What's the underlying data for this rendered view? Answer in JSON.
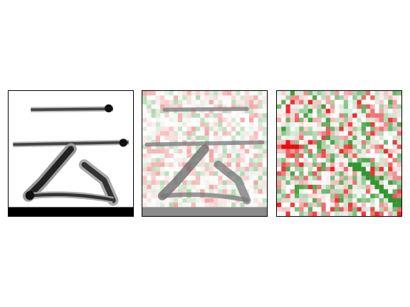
{
  "figure": {
    "panels": [
      {
        "id": "original",
        "kind": "grayscale-glyph"
      },
      {
        "id": "overlay",
        "kind": "glyph-with-attribution-overlay"
      },
      {
        "id": "heatmap",
        "kind": "attribution-heatmap"
      }
    ],
    "colors": {
      "ink": "#111111",
      "positive": "#1a8a1a",
      "negative": "#e00000",
      "background": "#ffffff",
      "bottom_bar": "#000000",
      "overlay_bottom_bar": "#8a8a8a"
    },
    "grid_cells": 28
  }
}
